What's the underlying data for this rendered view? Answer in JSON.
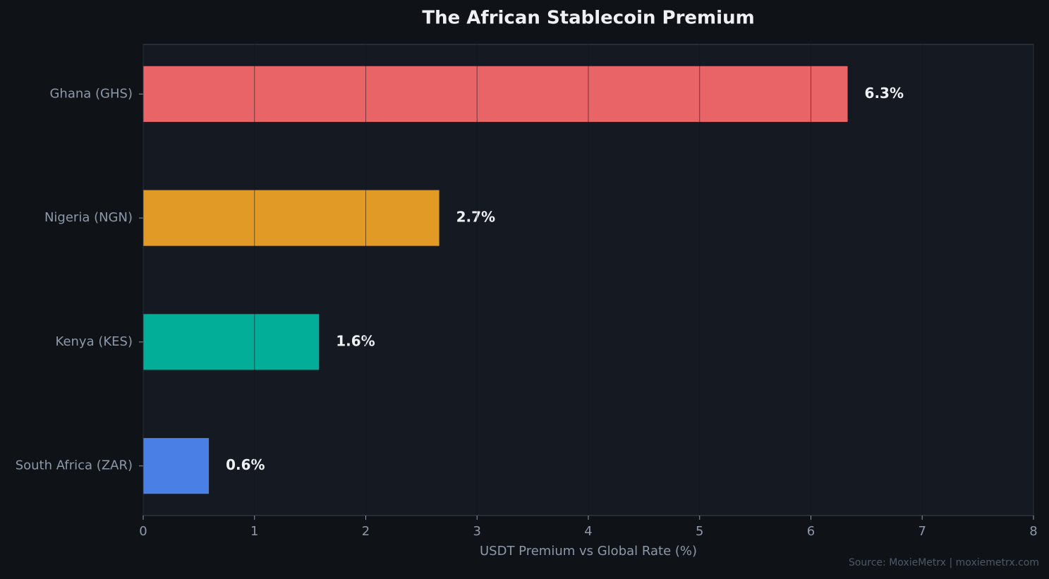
{
  "chart_data": {
    "type": "barh",
    "title": "The African Stablecoin Premium",
    "xlabel": "USDT Premium vs Global Rate (%)",
    "source": "Source: MoxieMetrx | moxiemetrx.com",
    "categories": [
      "Ghana (GHS)",
      "Nigeria (NGN)",
      "Kenya (KES)",
      "South Africa (ZAR)"
    ],
    "values": [
      6.33,
      2.66,
      1.58,
      0.59
    ],
    "value_labels": [
      "6.3%",
      "2.7%",
      "1.6%",
      "0.6%"
    ],
    "colors": [
      "#e86467",
      "#e09a25",
      "#03ae98",
      "#4a80e5"
    ],
    "xlim": [
      0,
      8
    ],
    "xticks": [
      0,
      1,
      2,
      3,
      4,
      5,
      6,
      7,
      8
    ],
    "grid": true
  }
}
